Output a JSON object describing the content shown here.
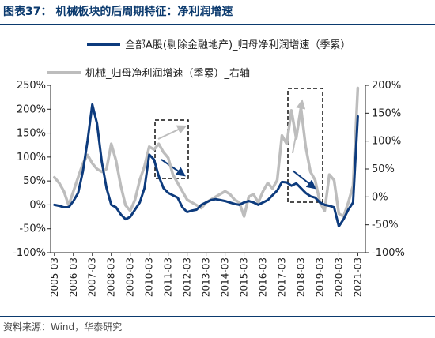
{
  "figure": {
    "title": "图表37：  机械板块的后周期特征：净利润增速",
    "source": "资料来源：Wind，华泰研究"
  },
  "colors": {
    "title": "#0b3a6e",
    "series_a": "#0d3b7d",
    "series_b": "#bdbdbd",
    "box": "#111111",
    "arrow_grey": "#bdbdbd",
    "arrow_navy": "#0d3b7d"
  },
  "chart_data": {
    "type": "line",
    "x_tick_labels": [
      "2005-03",
      "2006-03",
      "2007-03",
      "2008-03",
      "2009-03",
      "2010-03",
      "2011-03",
      "2012-03",
      "2013-03",
      "2014-03",
      "2015-03",
      "2016-03",
      "2017-03",
      "2018-03",
      "2019-03",
      "2020-03",
      "2021-03"
    ],
    "y_left": {
      "min": -1.0,
      "max": 2.5,
      "step": 0.5,
      "ticks": [
        "-100%",
        "-50%",
        "0%",
        "50%",
        "100%",
        "150%",
        "200%",
        "250%"
      ]
    },
    "y_right": {
      "min": -1.0,
      "max": 2.0,
      "step": 0.5,
      "ticks": [
        "-100%",
        "-50%",
        "0%",
        "50%",
        "100%",
        "150%",
        "200%"
      ]
    },
    "legend_position": "top",
    "grid": false,
    "series": [
      {
        "name": "全部A股(剔除金融地产)_归母净利润增速（季累）",
        "axis": "left",
        "color": "#0d3b7d",
        "x": [
          2005.2,
          2005.45,
          2005.7,
          2005.95,
          2006.2,
          2006.45,
          2006.7,
          2006.95,
          2007.2,
          2007.45,
          2007.7,
          2007.95,
          2008.2,
          2008.45,
          2008.7,
          2008.95,
          2009.2,
          2009.45,
          2009.7,
          2009.95,
          2010.2,
          2010.45,
          2010.7,
          2010.95,
          2011.2,
          2011.45,
          2011.7,
          2011.95,
          2012.2,
          2012.45,
          2012.7,
          2012.95,
          2013.2,
          2013.45,
          2013.7,
          2013.95,
          2014.2,
          2014.45,
          2014.7,
          2014.95,
          2015.2,
          2015.45,
          2015.7,
          2015.95,
          2016.2,
          2016.45,
          2016.7,
          2016.95,
          2017.2,
          2017.45,
          2017.7,
          2017.95,
          2018.2,
          2018.45,
          2018.7,
          2018.95,
          2019.2,
          2019.45,
          2019.7,
          2019.95,
          2020.2,
          2020.45,
          2020.7,
          2020.95,
          2021.2
        ],
        "y": [
          0.0,
          -0.02,
          -0.05,
          -0.05,
          0.08,
          0.25,
          0.7,
          1.35,
          2.1,
          1.7,
          0.9,
          0.35,
          0.0,
          -0.05,
          -0.2,
          -0.3,
          -0.25,
          -0.1,
          0.05,
          0.35,
          1.05,
          0.95,
          0.6,
          0.35,
          0.25,
          0.2,
          0.15,
          -0.05,
          -0.15,
          -0.12,
          -0.1,
          0.0,
          0.05,
          0.1,
          0.12,
          0.1,
          0.08,
          0.05,
          0.02,
          0.0,
          0.05,
          0.08,
          0.05,
          0.0,
          0.05,
          0.1,
          0.2,
          0.3,
          0.48,
          0.47,
          0.4,
          0.45,
          0.35,
          0.25,
          0.18,
          0.15,
          0.05,
          0.0,
          -0.02,
          -0.05,
          -0.45,
          -0.3,
          -0.1,
          0.05,
          1.85
        ]
      },
      {
        "name": "机械_归母净利润增速（季累）_右轴",
        "axis": "right",
        "color": "#bdbdbd",
        "x": [
          2005.2,
          2005.45,
          2005.7,
          2005.95,
          2006.2,
          2006.45,
          2006.7,
          2006.95,
          2007.2,
          2007.45,
          2007.7,
          2007.95,
          2008.2,
          2008.45,
          2008.7,
          2008.95,
          2009.2,
          2009.45,
          2009.7,
          2009.95,
          2010.2,
          2010.45,
          2010.7,
          2010.95,
          2011.2,
          2011.45,
          2011.7,
          2011.95,
          2012.2,
          2012.45,
          2012.7,
          2012.95,
          2013.2,
          2013.45,
          2013.7,
          2013.95,
          2014.2,
          2014.45,
          2014.7,
          2014.95,
          2015.2,
          2015.45,
          2015.7,
          2015.95,
          2016.2,
          2016.45,
          2016.7,
          2016.95,
          2017.2,
          2017.45,
          2017.7,
          2017.95,
          2018.2,
          2018.45,
          2018.7,
          2018.95,
          2019.2,
          2019.45,
          2019.7,
          2019.95,
          2020.2,
          2020.45,
          2020.7,
          2020.95,
          2021.2
        ],
        "y": [
          0.35,
          0.25,
          0.1,
          -0.15,
          0.1,
          0.35,
          0.6,
          0.75,
          0.6,
          0.5,
          0.45,
          0.5,
          0.95,
          0.65,
          0.2,
          -0.15,
          -0.25,
          -0.05,
          0.3,
          0.55,
          0.9,
          0.85,
          0.95,
          0.8,
          0.7,
          0.4,
          0.25,
          0.1,
          -0.05,
          -0.1,
          -0.15,
          -0.2,
          -0.1,
          -0.05,
          0.0,
          0.05,
          0.1,
          0.05,
          -0.05,
          -0.1,
          -0.35,
          0.0,
          0.05,
          -0.1,
          0.1,
          0.25,
          0.15,
          0.3,
          1.1,
          0.95,
          1.55,
          1.05,
          1.6,
          0.9,
          0.45,
          0.3,
          -0.1,
          -0.25,
          0.4,
          0.3,
          -0.3,
          -0.35,
          -0.1,
          0.2,
          1.95
        ]
      }
    ]
  }
}
